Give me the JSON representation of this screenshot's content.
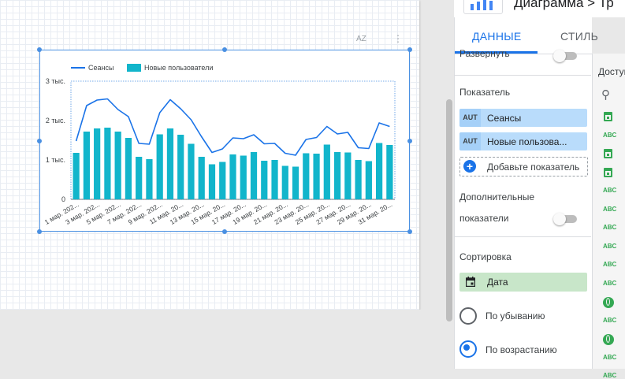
{
  "panel": {
    "title": "Диаграмма > Тр",
    "tabs": [
      {
        "label": "ДАННЫЕ",
        "active": true
      },
      {
        "label": "СТИЛЬ",
        "active": false
      }
    ],
    "expand_label": "Развернуть",
    "metric_section_label": "Показатель",
    "metrics": [
      {
        "tag": "AUT",
        "label": "Сеансы"
      },
      {
        "tag": "AUT",
        "label": "Новые пользова..."
      }
    ],
    "add_metric_label": "Добавьте показатель",
    "additional_metrics_label_line1": "Дополнительные",
    "additional_metrics_label_line2": "показатели",
    "sort_section_label": "Сортировка",
    "sort_field": "Дата",
    "sort_descending_label": "По убыванию",
    "sort_ascending_label": "По возрастанию",
    "sort_selected": "ascending"
  },
  "fields_panel": {
    "title": "Доступ",
    "icons": [
      "date-icon",
      "text-field-icon",
      "date-icon",
      "date-icon",
      "text-field-icon",
      "text-field-icon",
      "text-field-icon",
      "text-field-icon",
      "text-field-icon",
      "text-field-icon",
      "globe-icon",
      "text-field-icon",
      "globe-icon",
      "text-field-icon",
      "text-field-icon"
    ],
    "text_tag": "ABC"
  },
  "canvas": {
    "sort_icon_label": "AZ"
  },
  "colors": {
    "line": "#1a73e8",
    "bar": "#12b5cb",
    "accent": "#1a73e8",
    "selection": "#4a90e2",
    "sort_chip": "#c8e6c9",
    "metric_chip": "#b9dcfb"
  },
  "chart_data": {
    "type": "bar",
    "legend": [
      "Сеансы",
      "Новые пользователи"
    ],
    "legend_position": "top-left",
    "ylim": [
      0,
      3000
    ],
    "yticks": [
      "0",
      "1 тыс.",
      "2 тыс.",
      "3 тыс."
    ],
    "ytick_values": [
      0,
      1000,
      2000,
      3000
    ],
    "x_tick_labels": [
      "1 мар. 202...",
      "3 мар. 202...",
      "5 мар. 202...",
      "7 мар. 202...",
      "9 мар. 202...",
      "11 мар. 20...",
      "13 мар. 20...",
      "15 мар. 20...",
      "17 мар. 20...",
      "19 мар. 20...",
      "21 мар. 20...",
      "23 мар. 20...",
      "25 мар. 20...",
      "27 мар. 20...",
      "29 мар. 20...",
      "31 мар. 20..."
    ],
    "series": [
      {
        "name": "Сеансы",
        "type": "line",
        "values": [
          1480,
          2380,
          2520,
          2550,
          2280,
          2100,
          1420,
          1400,
          2200,
          2530,
          2300,
          2020,
          1590,
          1190,
          1280,
          1560,
          1540,
          1640,
          1410,
          1420,
          1170,
          1120,
          1520,
          1570,
          1850,
          1660,
          1700,
          1310,
          1290,
          1940,
          1850
        ]
      },
      {
        "name": "Новые пользователи",
        "type": "bar",
        "values": [
          1180,
          1720,
          1800,
          1820,
          1720,
          1560,
          1080,
          1020,
          1650,
          1800,
          1640,
          1410,
          1080,
          890,
          950,
          1140,
          1110,
          1200,
          980,
          1000,
          850,
          830,
          1170,
          1160,
          1390,
          1200,
          1190,
          1000,
          970,
          1430,
          1380
        ]
      }
    ]
  }
}
